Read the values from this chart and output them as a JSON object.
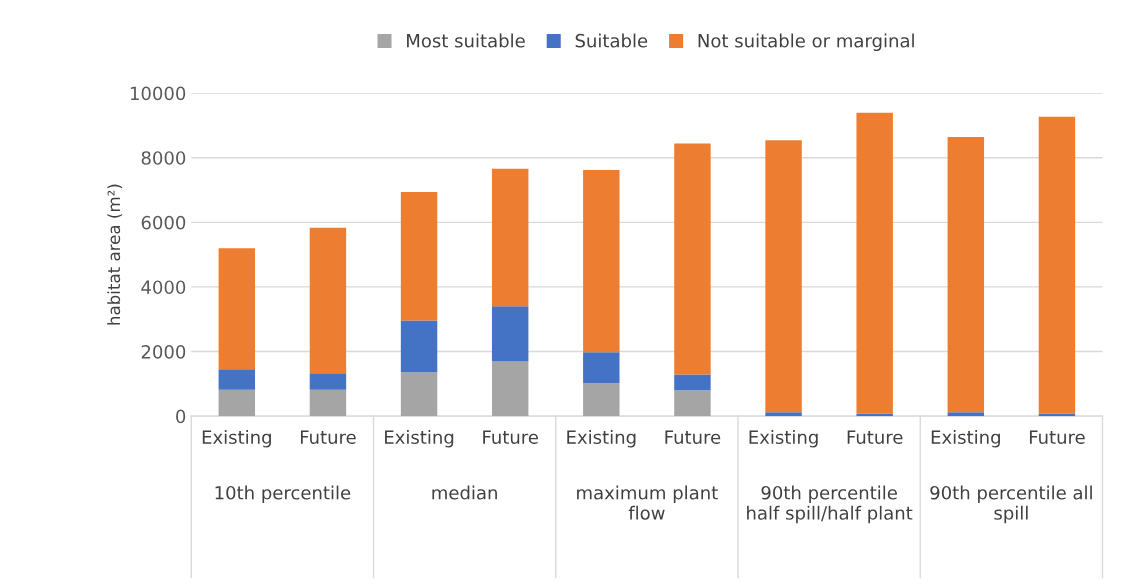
{
  "chart_data": {
    "type": "bar",
    "stacked": true,
    "ylabel": "habitat area (m²)",
    "categories": [
      "Existing",
      "Future",
      "Existing",
      "Future",
      "Existing",
      "Future",
      "Existing",
      "Future",
      "Existing",
      "Future"
    ],
    "series": [
      {
        "name": "Most suitable",
        "color": "#a5a5a5",
        "values": [
          820,
          820,
          1360,
          1690,
          1020,
          800,
          0,
          0,
          0,
          0
        ]
      },
      {
        "name": "Suitable",
        "color": "#4472c4",
        "values": [
          630,
          510,
          1600,
          1710,
          960,
          490,
          120,
          80,
          120,
          80
        ]
      },
      {
        "name": "Not suitable or marginal",
        "color": "#ed7d31",
        "values": [
          3750,
          4500,
          3980,
          4260,
          5640,
          7150,
          8420,
          9310,
          8520,
          9190
        ]
      }
    ],
    "annotations": [
      "10th percentile",
      "median",
      "maximum plant\nflow",
      "90th percentile\nhalf spill/half plant",
      "90th percentile all\nspill"
    ],
    "ylim": [
      0,
      10000
    ],
    "yticks": [
      0,
      2000,
      4000,
      6000,
      8000,
      10000
    ],
    "grid": "y",
    "legend": "top"
  }
}
